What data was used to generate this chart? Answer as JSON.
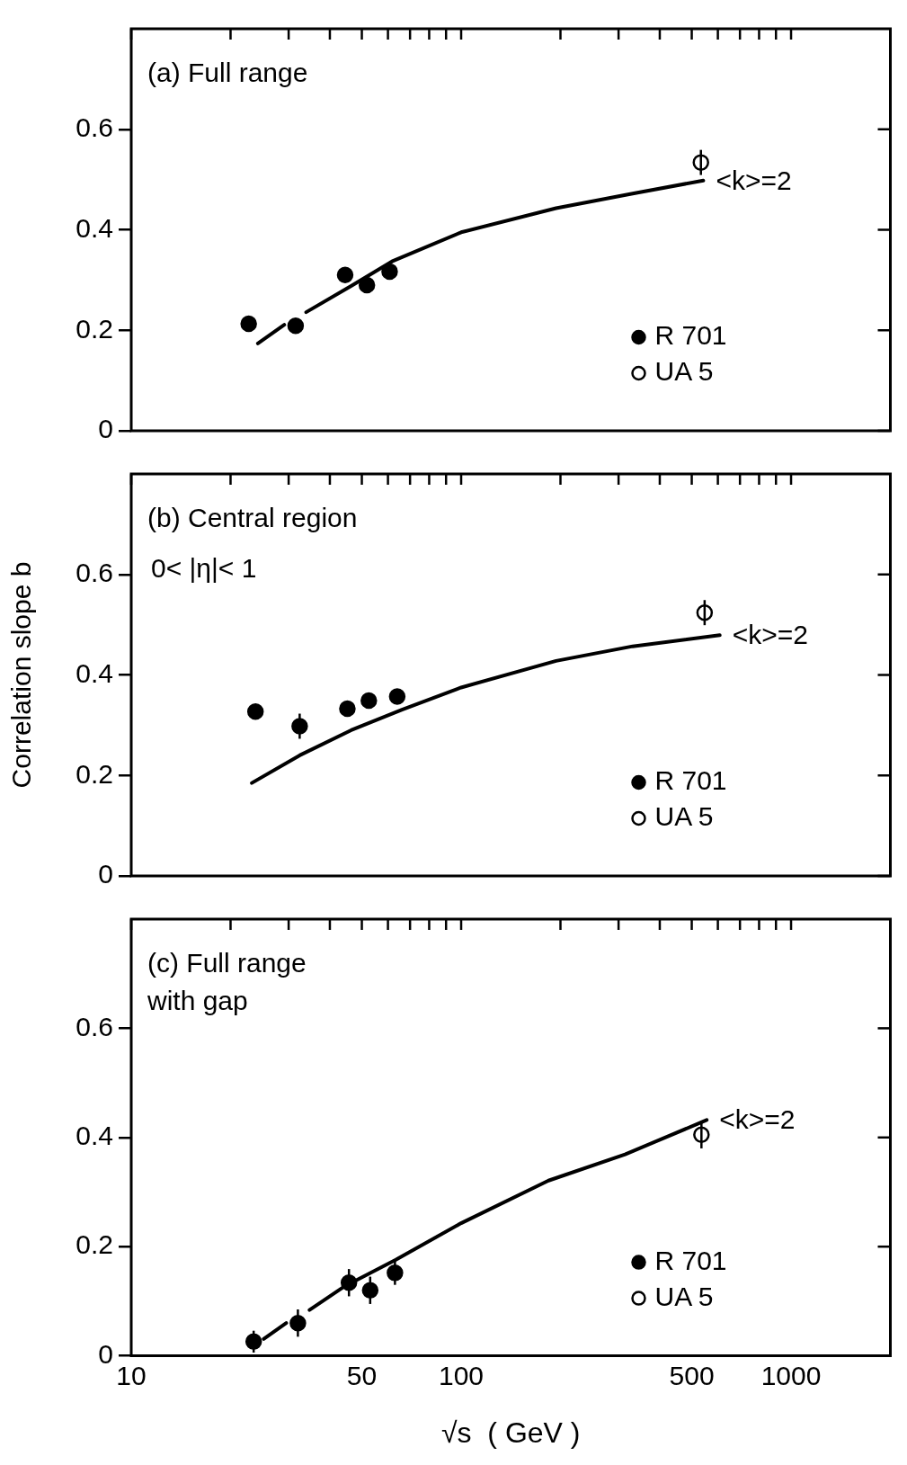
{
  "chart_data": [
    {
      "type": "scatter",
      "title": "(a) Full range",
      "xlim": [
        10,
        2000
      ],
      "xticks": [
        10,
        {
          "value": 20,
          "label": null
        },
        {
          "value": 30,
          "label": null
        },
        {
          "value": 40,
          "label": null
        },
        50,
        {
          "value": 60,
          "label": null
        },
        {
          "value": 70,
          "label": null
        },
        {
          "value": 80,
          "label": null
        },
        {
          "value": 90,
          "label": null
        },
        100,
        {
          "value": 200,
          "label": null
        },
        {
          "value": 300,
          "label": null
        },
        {
          "value": 400,
          "label": null
        },
        500,
        {
          "value": 600,
          "label": null
        },
        {
          "value": 700,
          "label": null
        },
        {
          "value": 800,
          "label": null
        },
        {
          "value": 900,
          "label": null
        },
        1000
      ],
      "ylim": [
        0,
        0.8
      ],
      "yticks": [
        0,
        0.2,
        0.4,
        0.6
      ],
      "log": "x",
      "legend": "bottom right",
      "tick_labels": "y",
      "annotations": [
        "<k>=2"
      ],
      "series": [
        {
          "name": "R 701",
          "type": "scatter",
          "marker": "circle",
          "color": "#000000",
          "x": [
            22.7,
            31.5,
            44.5,
            51.8,
            60.7
          ],
          "values": [
            0.213,
            0.209,
            0.31,
            0.29,
            0.317
          ],
          "errors": [
            0.015,
            0.015,
            0.015,
            0.015,
            0.015
          ]
        },
        {
          "name": "UA 5",
          "type": "scatter",
          "marker": "circle",
          "color": "#ffffff",
          "x": [
            533
          ],
          "values": [
            0.534
          ],
          "errors": [
            0.025
          ]
        },
        {
          "type": "line",
          "marker": "none",
          "line_style": "solid",
          "color": "#000000",
          "x": [
            24.2,
            29.1,
            31.5,
            33.9,
            46.4,
            61.7,
            100,
            194,
            331,
            542
          ],
          "values": [
            0.174,
            0.211,
            null,
            0.236,
            0.288,
            0.337,
            0.395,
            0.443,
            0.472,
            0.498
          ]
        }
      ]
    },
    {
      "type": "scatter",
      "title": "(b) Central region",
      "subtitle": "0< |η|< 1",
      "ylabel": "Correlation slope b",
      "xlim": [
        10,
        2000
      ],
      "xticks": [
        10,
        {
          "value": 20,
          "label": null
        },
        {
          "value": 30,
          "label": null
        },
        {
          "value": 40,
          "label": null
        },
        50,
        {
          "value": 60,
          "label": null
        },
        {
          "value": 70,
          "label": null
        },
        {
          "value": 80,
          "label": null
        },
        {
          "value": 90,
          "label": null
        },
        100,
        {
          "value": 200,
          "label": null
        },
        {
          "value": 300,
          "label": null
        },
        {
          "value": 400,
          "label": null
        },
        500,
        {
          "value": 600,
          "label": null
        },
        {
          "value": 700,
          "label": null
        },
        {
          "value": 800,
          "label": null
        },
        {
          "value": 900,
          "label": null
        },
        1000
      ],
      "ylim": [
        0,
        0.8
      ],
      "yticks": [
        0,
        0.2,
        0.4,
        0.6
      ],
      "log": "x",
      "legend": "bottom right",
      "tick_labels": "y",
      "annotations": [
        "<k>=2"
      ],
      "series": [
        {
          "name": "R 701",
          "type": "scatter",
          "marker": "circle",
          "color": "#000000",
          "x": [
            23.8,
            32.4,
            45.2,
            52.5,
            64
          ],
          "values": [
            0.327,
            0.298,
            0.333,
            0.349,
            0.357
          ],
          "errors": [
            0.015,
            0.025,
            0.015,
            0.012,
            0.012
          ]
        },
        {
          "name": "UA 5",
          "type": "scatter",
          "marker": "circle",
          "color": "#ffffff",
          "x": [
            547
          ],
          "values": [
            0.524
          ],
          "errors": [
            0.025
          ]
        },
        {
          "type": "line",
          "marker": "none",
          "line_style": "solid",
          "color": "#000000",
          "x": [
            23.2,
            32.4,
            46.4,
            66.2,
            100,
            194,
            331,
            608
          ],
          "values": [
            0.185,
            0.24,
            0.29,
            0.331,
            0.375,
            0.428,
            0.457,
            0.479
          ]
        }
      ]
    },
    {
      "type": "scatter",
      "title": "(c) Full range\nwith gap",
      "xlabel": "√s  ( GeV )",
      "xlim": [
        10,
        2000
      ],
      "xticks": [
        10,
        {
          "value": 20,
          "label": null
        },
        {
          "value": 30,
          "label": null
        },
        {
          "value": 40,
          "label": null
        },
        50,
        {
          "value": 60,
          "label": null
        },
        {
          "value": 70,
          "label": null
        },
        {
          "value": 80,
          "label": null
        },
        {
          "value": 90,
          "label": null
        },
        100,
        {
          "value": 200,
          "label": null
        },
        {
          "value": 300,
          "label": null
        },
        {
          "value": 400,
          "label": null
        },
        500,
        {
          "value": 600,
          "label": null
        },
        {
          "value": 700,
          "label": null
        },
        {
          "value": 800,
          "label": null
        },
        {
          "value": 900,
          "label": null
        },
        1000
      ],
      "ylim": [
        0,
        0.8
      ],
      "yticks": [
        0,
        0.2,
        0.4,
        0.6
      ],
      "log": "x",
      "legend": "bottom right",
      "annotations": [
        "<k>=2"
      ],
      "series": [
        {
          "name": "R 701",
          "type": "scatter",
          "marker": "circle",
          "color": "#000000",
          "x": [
            23.5,
            32,
            45.7,
            53,
            63
          ],
          "values": [
            0.026,
            0.06,
            0.134,
            0.12,
            0.152
          ],
          "errors": [
            0.02,
            0.025,
            0.025,
            0.025,
            0.022
          ]
        },
        {
          "name": "UA 5",
          "type": "scatter",
          "marker": "circle",
          "color": "#ffffff",
          "x": [
            535
          ],
          "values": [
            0.405
          ],
          "errors": [
            0.025
          ]
        },
        {
          "type": "line",
          "marker": "none",
          "line_style": "solid",
          "color": "#000000",
          "x": [
            25.2,
            29.5,
            31,
            34.7,
            44.5,
            63.4,
            100,
            184,
            314,
            555
          ],
          "values": [
            0.031,
            0.06,
            null,
            0.084,
            0.128,
            0.176,
            0.243,
            0.321,
            0.369,
            0.432
          ]
        }
      ]
    }
  ]
}
